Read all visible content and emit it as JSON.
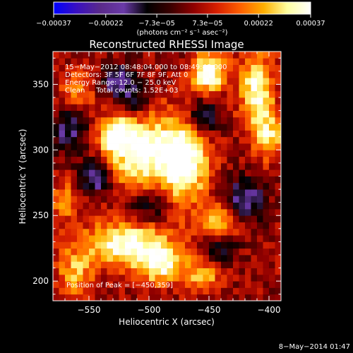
{
  "chart_data": {
    "type": "heatmap",
    "title": "Reconstructed RHESSI Image",
    "xlabel": "Heliocentric X (arcsec)",
    "ylabel": "Heliocentric Y (arcsec)",
    "xlim": [
      -580,
      -390
    ],
    "ylim": [
      185,
      375
    ],
    "x_ticks": [
      -550,
      -500,
      -450,
      -400
    ],
    "x_tick_labels": [
      "−550",
      "−500",
      "−450",
      "−400"
    ],
    "y_ticks": [
      200,
      250,
      300,
      350
    ],
    "y_tick_labels": [
      "200",
      "250",
      "300",
      "350"
    ],
    "colorbar": {
      "range": [
        -0.00037,
        0.00037
      ],
      "tick_values": [
        -0.00037,
        -0.00022,
        -7.3e-05,
        7.3e-05,
        0.00022,
        0.00037
      ],
      "tick_labels": [
        "−0.00037",
        "−0.00022",
        "−7.3e−05",
        "7.3e−05",
        "0.00022",
        "0.00037"
      ],
      "units_label": "(photons cm⁻² s⁻¹ asec⁻²)",
      "colormap": [
        "#0000ff",
        "#3a10c0",
        "#5a2a8a",
        "#6a3aa8",
        "#000000",
        "#3a0000",
        "#900000",
        "#d82000",
        "#ff6000",
        "#ffb000",
        "#ffffa0",
        "#ffffff"
      ]
    },
    "annotations": [
      "15−May−2012 08:48:04.000 to 08:49:48.000",
      "Detectors: 3F 5F 6F 7F 8F 9F, Att 0",
      "Energy Range: 12.0 − 25.0 keV",
      "Clean     Total counts: 1.52E+03",
      "Position of Peak = [−450,359]"
    ],
    "peak": [
      -450,
      359
    ],
    "sources": [
      {
        "x": -508,
        "y": 300,
        "sx": 22,
        "sy": 20,
        "amp": 0.00034
      },
      {
        "x": -470,
        "y": 292,
        "sx": 14,
        "sy": 22,
        "amp": 0.00036
      },
      {
        "x": -528,
        "y": 312,
        "sx": 8,
        "sy": 8,
        "amp": 0.00028
      },
      {
        "x": -450,
        "y": 359,
        "sx": 10,
        "sy": 10,
        "amp": 0.00037
      },
      {
        "x": -410,
        "y": 345,
        "sx": 10,
        "sy": 20,
        "amp": 0.00031
      },
      {
        "x": -400,
        "y": 310,
        "sx": 8,
        "sy": 12,
        "amp": 0.00025
      },
      {
        "x": -520,
        "y": 228,
        "sx": 26,
        "sy": 12,
        "amp": 0.00033
      },
      {
        "x": -490,
        "y": 212,
        "sx": 14,
        "sy": 10,
        "amp": 0.00028
      },
      {
        "x": -440,
        "y": 244,
        "sx": 12,
        "sy": 10,
        "amp": 0.00027
      },
      {
        "x": -455,
        "y": 205,
        "sx": 10,
        "sy": 8,
        "amp": 0.00022
      },
      {
        "x": -562,
        "y": 205,
        "sx": 10,
        "sy": 12,
        "amp": 0.0002
      },
      {
        "x": -570,
        "y": 262,
        "sx": 8,
        "sy": 10,
        "amp": 0.00018
      },
      {
        "x": -560,
        "y": 345,
        "sx": 10,
        "sy": 10,
        "amp": 0.00016
      },
      {
        "x": -545,
        "y": 280,
        "sx": 10,
        "sy": 10,
        "amp": -0.00026
      },
      {
        "x": -565,
        "y": 315,
        "sx": 10,
        "sy": 12,
        "amp": -0.00022
      },
      {
        "x": -525,
        "y": 352,
        "sx": 10,
        "sy": 10,
        "amp": -0.00024
      },
      {
        "x": -455,
        "y": 325,
        "sx": 10,
        "sy": 10,
        "amp": -0.00022
      },
      {
        "x": -420,
        "y": 262,
        "sx": 12,
        "sy": 12,
        "amp": -0.00024
      },
      {
        "x": -440,
        "y": 228,
        "sx": 10,
        "sy": 10,
        "amp": -0.0002
      },
      {
        "x": -500,
        "y": 258,
        "sx": 12,
        "sy": 8,
        "amp": -0.00018
      },
      {
        "x": -510,
        "y": 336,
        "sx": 8,
        "sy": 8,
        "amp": -0.00018
      }
    ]
  },
  "footer": {
    "date_label": "8−May−2014 01:47"
  }
}
